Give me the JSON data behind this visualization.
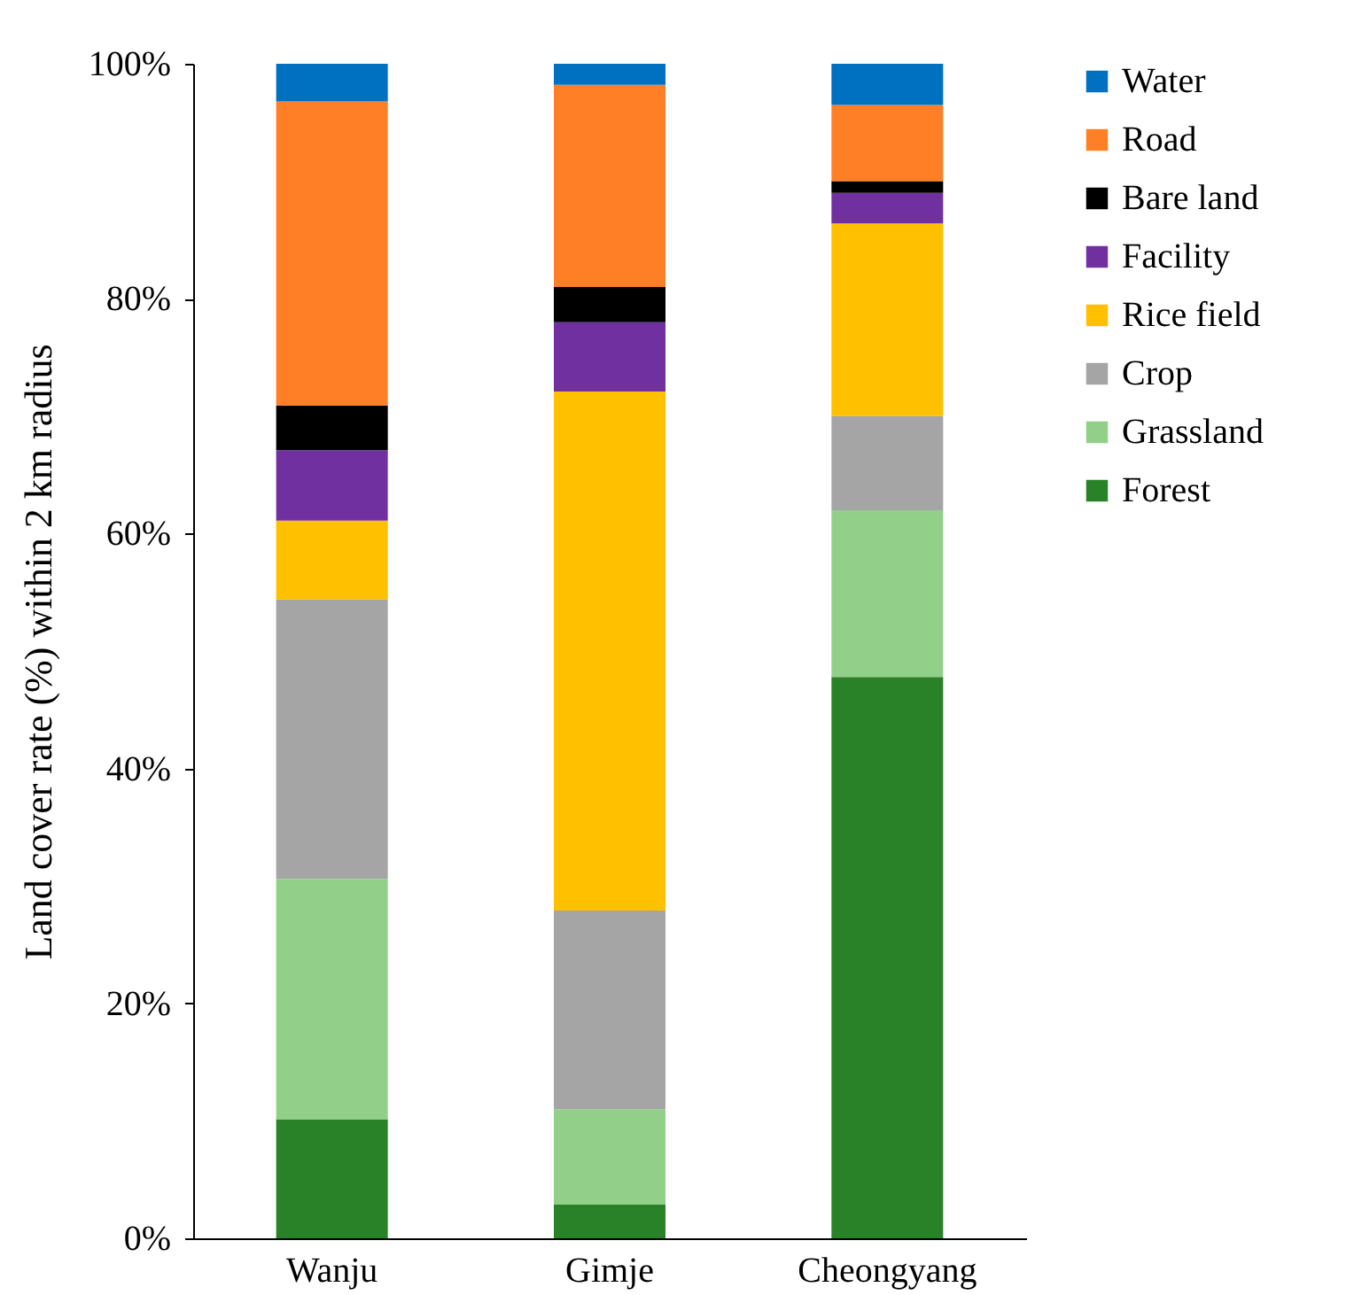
{
  "chart_data": {
    "type": "bar",
    "stacked": true,
    "ylabel": "Land cover rate (%) within 2 km radius",
    "categories": [
      "Wanju",
      "Gimje",
      "Cheongyang"
    ],
    "ylim": [
      0,
      100
    ],
    "yticks": [
      {
        "value": 0,
        "label": "0%"
      },
      {
        "value": 20,
        "label": "20%"
      },
      {
        "value": 40,
        "label": "40%"
      },
      {
        "value": 60,
        "label": "60%"
      },
      {
        "value": 80,
        "label": "80%"
      },
      {
        "value": 100,
        "label": "100%"
      }
    ],
    "legend": "right",
    "grid": false,
    "series": [
      {
        "name": "Forest",
        "color": "#2a8228",
        "values": [
          10.1,
          2.9,
          47.8
        ]
      },
      {
        "name": "Grassland",
        "color": "#92d08a",
        "values": [
          20.5,
          8.1,
          14.2
        ]
      },
      {
        "name": "Crop",
        "color": "#a5a5a5",
        "values": [
          23.8,
          16.9,
          8.0
        ]
      },
      {
        "name": "Rice field",
        "color": "#ffc000",
        "values": [
          6.7,
          44.2,
          16.4
        ]
      },
      {
        "name": "Facility",
        "color": "#7030a0",
        "values": [
          6.0,
          5.9,
          2.6
        ]
      },
      {
        "name": "Bare land",
        "color": "#000000",
        "values": [
          3.8,
          3.0,
          1.0
        ]
      },
      {
        "name": "Road",
        "color": "#ff7f27",
        "values": [
          25.9,
          17.2,
          6.5
        ]
      },
      {
        "name": "Water",
        "color": "#0070c0",
        "values": [
          3.2,
          1.8,
          3.5
        ]
      }
    ]
  }
}
